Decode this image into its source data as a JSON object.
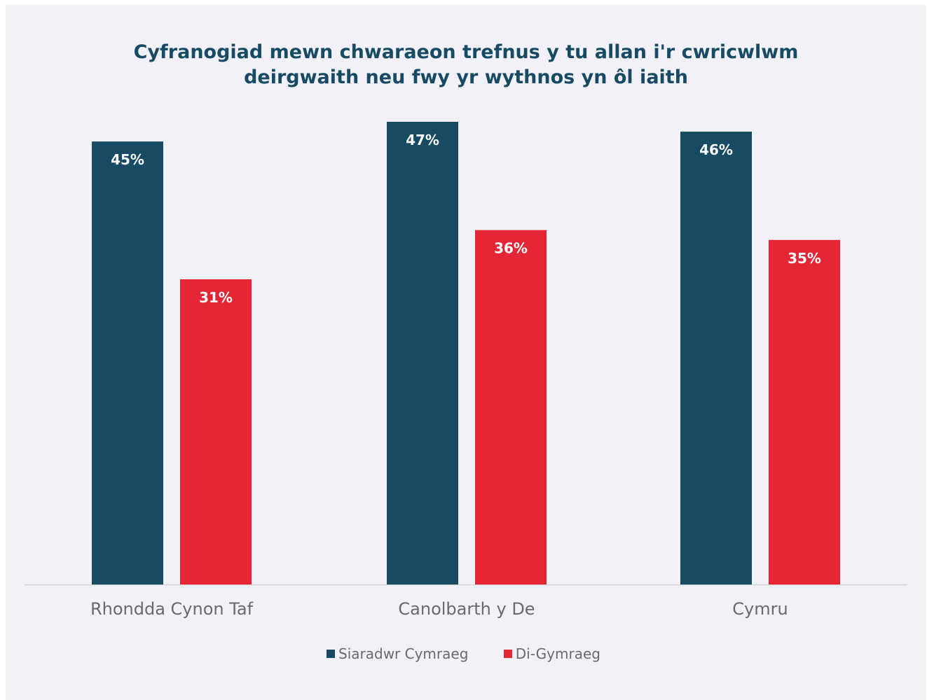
{
  "chart_data": {
    "type": "bar",
    "title_lines": [
      "Cyfranogiad mewn chwaraeon trefnus y tu allan i'r cwricwlwm",
      "deirgwaith neu fwy yr wythnos yn ôl iaith"
    ],
    "categories": [
      "Rhondda Cynon Taf",
      "Canolbarth y De",
      "Cymru"
    ],
    "series": [
      {
        "name": "Siaradwr Cymraeg",
        "color": "#174a63",
        "values": [
          45,
          47,
          46
        ],
        "labels": [
          "45%",
          "47%",
          "46%"
        ]
      },
      {
        "name": "Di-Gymraeg",
        "color": "#e42535",
        "values": [
          31,
          36,
          35
        ],
        "labels": [
          "31%",
          "36%",
          "35%"
        ]
      }
    ],
    "ylim": [
      0,
      47
    ],
    "grid": false,
    "legend_position": "bottom-center"
  }
}
